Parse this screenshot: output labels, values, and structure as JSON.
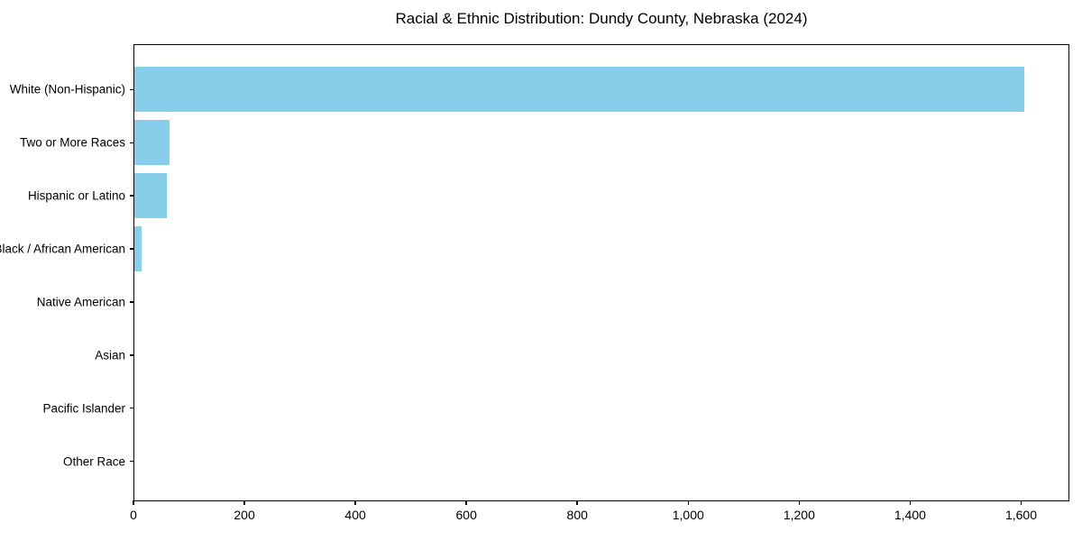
{
  "chart_data": {
    "type": "bar",
    "orientation": "horizontal",
    "title": "Racial & Ethnic Distribution: Dundy County, Nebraska (2024)",
    "categories": [
      "White (Non-Hispanic)",
      "Two or More Races",
      "Hispanic or Latino",
      "Black / African American",
      "Native American",
      "Asian",
      "Pacific Islander",
      "Other Race"
    ],
    "values": [
      1607,
      63,
      58,
      13,
      0,
      0,
      0,
      0
    ],
    "xlabel": "",
    "ylabel": "",
    "xlim": [
      0,
      1687
    ],
    "x_ticks": [
      {
        "value": 0,
        "label": "0"
      },
      {
        "value": 200,
        "label": "200"
      },
      {
        "value": 400,
        "label": "400"
      },
      {
        "value": 600,
        "label": "600"
      },
      {
        "value": 800,
        "label": "800"
      },
      {
        "value": 1000,
        "label": "1,000"
      },
      {
        "value": 1200,
        "label": "1,200"
      },
      {
        "value": 1400,
        "label": "1,400"
      },
      {
        "value": 1600,
        "label": "1,600"
      }
    ],
    "grid": false,
    "legend": false,
    "bar_color": "#87CEEB",
    "background_color": "#FFFFFF",
    "text_color": "#000000"
  }
}
